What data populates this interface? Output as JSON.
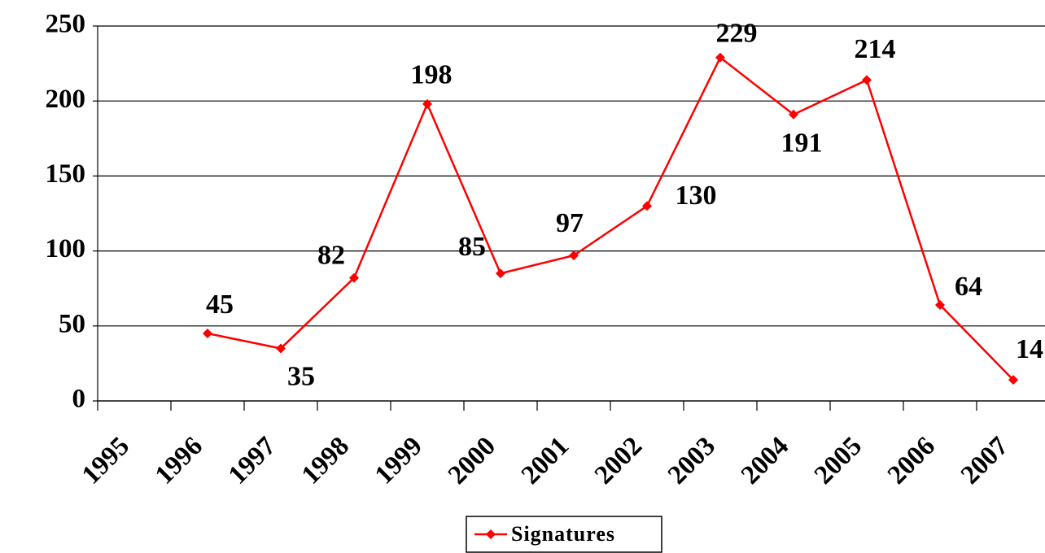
{
  "chart_data": {
    "type": "line",
    "categories": [
      "1995",
      "1996",
      "1997",
      "1998",
      "1999",
      "2000",
      "2001",
      "2002",
      "2003",
      "2004",
      "2005",
      "2006",
      "2007"
    ],
    "series": [
      {
        "name": "Signatures",
        "color": "#ff0000",
        "values": [
          null,
          45,
          35,
          82,
          198,
          85,
          97,
          130,
          229,
          191,
          214,
          64,
          14
        ]
      }
    ],
    "ylim": [
      0,
      250
    ],
    "yticks": [
      0,
      50,
      100,
      150,
      200,
      250
    ],
    "grid": true,
    "legend": "bottom"
  }
}
